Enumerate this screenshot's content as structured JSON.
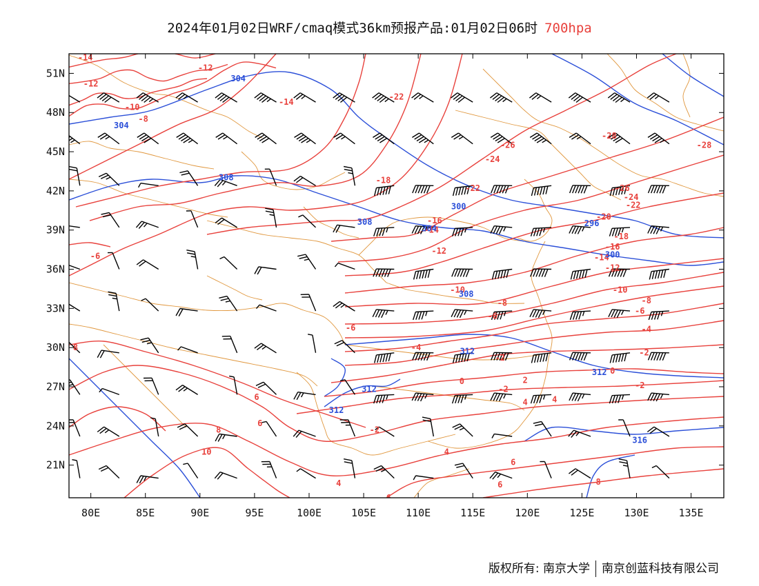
{
  "title": {
    "main": "2024年01月02日WRF/cmaq模式36km预报产品:01月02日06时",
    "level": "700hpa"
  },
  "map": {
    "lon_range": [
      78,
      138
    ],
    "lat_range": [
      18.5,
      52.5
    ],
    "lon_ticks": [
      {
        "value": 80,
        "label": "80E"
      },
      {
        "value": 85,
        "label": "85E"
      },
      {
        "value": 90,
        "label": "90E"
      },
      {
        "value": 95,
        "label": "95E"
      },
      {
        "value": 100,
        "label": "100E"
      },
      {
        "value": 105,
        "label": "105E"
      },
      {
        "value": 110,
        "label": "110E"
      },
      {
        "value": 115,
        "label": "115E"
      },
      {
        "value": 120,
        "label": "120E"
      },
      {
        "value": 125,
        "label": "125E"
      },
      {
        "value": 130,
        "label": "130E"
      },
      {
        "value": 135,
        "label": "135E"
      }
    ],
    "lat_ticks": [
      {
        "value": 51,
        "label": "51N"
      },
      {
        "value": 48,
        "label": "48N"
      },
      {
        "value": 45,
        "label": "45N"
      },
      {
        "value": 42,
        "label": "42N"
      },
      {
        "value": 39,
        "label": "39N"
      },
      {
        "value": 36,
        "label": "36N"
      },
      {
        "value": 33,
        "label": "33N"
      },
      {
        "value": 30,
        "label": "30N"
      },
      {
        "value": 27,
        "label": "27N"
      },
      {
        "value": 24,
        "label": "24N"
      },
      {
        "value": 21,
        "label": "21N"
      }
    ],
    "colors": {
      "temperature": "#e8413c",
      "height": "#2b4fd8",
      "border": "#e0963c",
      "wind": "#000000"
    },
    "temperature_labels": [
      {
        "text": "-14",
        "lon": 79.5,
        "lat": 52.0
      },
      {
        "text": "-12",
        "lon": 80.0,
        "lat": 50.0
      },
      {
        "text": "-12",
        "lon": 90.5,
        "lat": 51.2
      },
      {
        "text": "-10",
        "lon": 83.8,
        "lat": 48.2
      },
      {
        "text": "-8",
        "lon": 84.8,
        "lat": 47.3
      },
      {
        "text": "-14",
        "lon": 97.9,
        "lat": 48.6
      },
      {
        "text": "-22",
        "lon": 108.0,
        "lat": 49.0
      },
      {
        "text": "-26",
        "lon": 118.2,
        "lat": 45.3
      },
      {
        "text": "-24",
        "lon": 116.8,
        "lat": 44.2
      },
      {
        "text": "-18",
        "lon": 106.8,
        "lat": 42.6
      },
      {
        "text": "-22",
        "lon": 115.0,
        "lat": 42.0
      },
      {
        "text": "-28",
        "lon": 127.5,
        "lat": 46.0
      },
      {
        "text": "-28",
        "lon": 136.2,
        "lat": 45.3
      },
      {
        "text": "-26",
        "lon": 128.7,
        "lat": 42.0
      },
      {
        "text": "-24",
        "lon": 129.5,
        "lat": 41.3
      },
      {
        "text": "-22",
        "lon": 129.7,
        "lat": 40.7
      },
      {
        "text": "-20",
        "lon": 127.0,
        "lat": 39.8
      },
      {
        "text": "-16",
        "lon": 111.5,
        "lat": 39.5
      },
      {
        "text": "-14",
        "lon": 111.2,
        "lat": 38.8
      },
      {
        "text": "-12",
        "lon": 111.9,
        "lat": 37.2
      },
      {
        "text": "-18",
        "lon": 128.6,
        "lat": 38.3
      },
      {
        "text": "-16",
        "lon": 127.8,
        "lat": 37.5
      },
      {
        "text": "-14",
        "lon": 126.8,
        "lat": 36.7
      },
      {
        "text": "-12",
        "lon": 127.8,
        "lat": 35.9
      },
      {
        "text": "-10",
        "lon": 128.5,
        "lat": 34.2
      },
      {
        "text": "-8",
        "lon": 130.9,
        "lat": 33.4
      },
      {
        "text": "-6",
        "lon": 130.3,
        "lat": 32.6
      },
      {
        "text": "-4",
        "lon": 130.9,
        "lat": 31.2
      },
      {
        "text": "-10",
        "lon": 113.6,
        "lat": 34.2
      },
      {
        "text": "-8",
        "lon": 117.7,
        "lat": 33.2
      },
      {
        "text": "-6",
        "lon": 116.8,
        "lat": 32.2
      },
      {
        "text": "-6",
        "lon": 80.4,
        "lat": 36.8
      },
      {
        "text": "-6",
        "lon": 103.8,
        "lat": 31.3
      },
      {
        "text": "-4",
        "lon": 109.8,
        "lat": 29.8
      },
      {
        "text": "-2",
        "lon": 117.5,
        "lat": 29.0
      },
      {
        "text": "-2",
        "lon": 130.7,
        "lat": 29.4
      },
      {
        "text": "0",
        "lon": 127.8,
        "lat": 28.0
      },
      {
        "text": "-2",
        "lon": 130.3,
        "lat": 26.9
      },
      {
        "text": "0",
        "lon": 114.0,
        "lat": 27.2
      },
      {
        "text": "-2",
        "lon": 117.8,
        "lat": 26.6
      },
      {
        "text": "2",
        "lon": 119.8,
        "lat": 27.3
      },
      {
        "text": "4",
        "lon": 122.5,
        "lat": 25.8
      },
      {
        "text": "4",
        "lon": 119.8,
        "lat": 25.6
      },
      {
        "text": "-2",
        "lon": 106.0,
        "lat": 23.5
      },
      {
        "text": "4",
        "lon": 112.6,
        "lat": 21.8
      },
      {
        "text": "6",
        "lon": 118.7,
        "lat": 21.0
      },
      {
        "text": "8",
        "lon": 126.5,
        "lat": 19.5
      },
      {
        "text": "8",
        "lon": 78.6,
        "lat": 29.8
      },
      {
        "text": "8",
        "lon": 91.7,
        "lat": 23.5
      },
      {
        "text": "10",
        "lon": 90.6,
        "lat": 21.8
      },
      {
        "text": "6",
        "lon": 95.2,
        "lat": 26.0
      },
      {
        "text": "6",
        "lon": 95.5,
        "lat": 24.0
      },
      {
        "text": "4",
        "lon": 102.7,
        "lat": 19.4
      },
      {
        "text": "6",
        "lon": 107.3,
        "lat": 18.3
      },
      {
        "text": "6",
        "lon": 117.5,
        "lat": 19.3
      }
    ],
    "height_labels": [
      {
        "text": "304",
        "lon": 93.5,
        "lat": 50.4
      },
      {
        "text": "304",
        "lon": 82.8,
        "lat": 46.8
      },
      {
        "text": "308",
        "lon": 92.4,
        "lat": 42.8
      },
      {
        "text": "308",
        "lon": 105.1,
        "lat": 39.4
      },
      {
        "text": "304",
        "lon": 111.0,
        "lat": 38.9
      },
      {
        "text": "300",
        "lon": 113.7,
        "lat": 40.6
      },
      {
        "text": "296",
        "lon": 125.9,
        "lat": 39.3
      },
      {
        "text": "300",
        "lon": 127.8,
        "lat": 36.9
      },
      {
        "text": "308",
        "lon": 114.4,
        "lat": 33.9
      },
      {
        "text": "312",
        "lon": 114.5,
        "lat": 29.5
      },
      {
        "text": "312",
        "lon": 105.5,
        "lat": 26.6
      },
      {
        "text": "312",
        "lon": 102.5,
        "lat": 25.0
      },
      {
        "text": "312",
        "lon": 126.6,
        "lat": 27.9
      },
      {
        "text": "316",
        "lon": 130.3,
        "lat": 22.7
      }
    ]
  },
  "footer": {
    "copyright": "版权所有: 南京大学",
    "company": "南京创蓝科技有限公司"
  }
}
